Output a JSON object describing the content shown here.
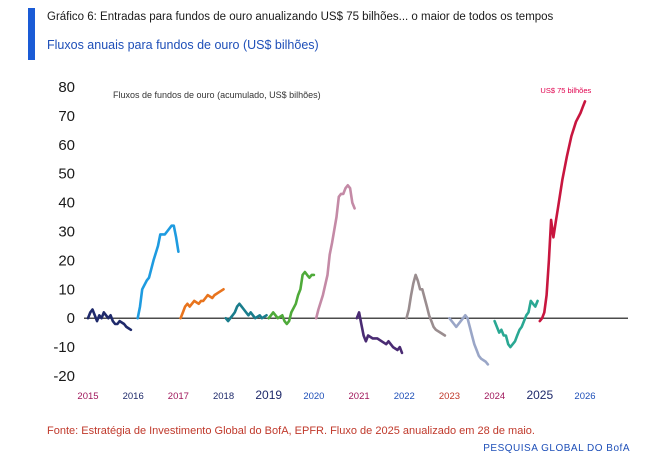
{
  "header": {
    "title": "Gráfico 6: Entradas para fundos de ouro anualizando US$ 75 bilhões... o maior de todos os tempos",
    "subtitle": "Fluxos anuais para fundos de ouro (US$ bilhões)"
  },
  "footer": {
    "source": "Fonte: Estratégia de Investimento Global do BofA, EPFR. Fluxo de 2025 anualizado em 28 de maio.",
    "brand": "PESQUISA GLOBAL DO BofA"
  },
  "colors": {
    "accent": "#1a5bd6",
    "subtitle": "#1e4fb8",
    "source": "#c0392b"
  },
  "chart_data": {
    "type": "line",
    "title": "",
    "xlabel": "",
    "ylabel": "",
    "ylim": [
      -20,
      80
    ],
    "yticks": [
      "80",
      "70",
      "60",
      "50",
      "40",
      "30",
      "20",
      "10",
      "0",
      "-10",
      "-20"
    ],
    "xlim": [
      2015,
      2026
    ],
    "grid": false,
    "zero_line": true,
    "inner_label": "Fluxos de fundos de ouro (acumulado, US$ bilhões)",
    "annotation": {
      "text": "US$ 75 bilhões",
      "x": 2025.5,
      "y": 75,
      "color": "#e0004d"
    },
    "year_labels": [
      {
        "label": "2015",
        "color": "#a0185c"
      },
      {
        "label": "2016",
        "color": "#1f2a6b"
      },
      {
        "label": "2017",
        "color": "#a0185c"
      },
      {
        "label": "2018",
        "color": "#1f2a6b"
      },
      {
        "label": "2019",
        "color": "#1f2a6b"
      },
      {
        "label": "2020",
        "color": "#1e4fb8"
      },
      {
        "label": "2021",
        "color": "#a0185c"
      },
      {
        "label": "2022",
        "color": "#1e4fb8"
      },
      {
        "label": "2023",
        "color": "#c0392b"
      },
      {
        "label": "2024",
        "color": "#a0185c"
      },
      {
        "label": "2025",
        "color": "#1f2a6b"
      },
      {
        "label": "2026",
        "color": "#1e4fb8"
      }
    ],
    "series": [
      {
        "color": "#1f2a6b",
        "points": [
          [
            2015.0,
            0
          ],
          [
            2015.05,
            2
          ],
          [
            2015.1,
            3
          ],
          [
            2015.15,
            1
          ],
          [
            2015.2,
            -1
          ],
          [
            2015.25,
            1
          ],
          [
            2015.3,
            0
          ],
          [
            2015.35,
            2
          ],
          [
            2015.45,
            0
          ],
          [
            2015.5,
            1
          ],
          [
            2015.55,
            -1
          ],
          [
            2015.6,
            -2
          ],
          [
            2015.65,
            -2
          ],
          [
            2015.7,
            -1
          ],
          [
            2015.8,
            -2
          ],
          [
            2015.85,
            -3
          ],
          [
            2015.95,
            -4
          ]
        ]
      },
      {
        "color": "#1e9be0",
        "points": [
          [
            2016.1,
            0
          ],
          [
            2016.15,
            4
          ],
          [
            2016.2,
            10
          ],
          [
            2016.3,
            13
          ],
          [
            2016.35,
            14
          ],
          [
            2016.45,
            20
          ],
          [
            2016.55,
            25
          ],
          [
            2016.6,
            29
          ],
          [
            2016.7,
            29
          ],
          [
            2016.75,
            30
          ],
          [
            2016.85,
            32
          ],
          [
            2016.9,
            32
          ],
          [
            2016.95,
            28
          ],
          [
            2017.0,
            23
          ]
        ]
      },
      {
        "color": "#e8741e",
        "points": [
          [
            2017.05,
            0
          ],
          [
            2017.1,
            2
          ],
          [
            2017.15,
            4
          ],
          [
            2017.2,
            5
          ],
          [
            2017.25,
            4
          ],
          [
            2017.3,
            5
          ],
          [
            2017.35,
            6
          ],
          [
            2017.45,
            5
          ],
          [
            2017.5,
            6
          ],
          [
            2017.55,
            6
          ],
          [
            2017.6,
            7
          ],
          [
            2017.65,
            8
          ],
          [
            2017.75,
            7
          ],
          [
            2017.8,
            8
          ],
          [
            2017.9,
            9
          ],
          [
            2018.0,
            10
          ]
        ]
      },
      {
        "color": "#1a7d8c",
        "points": [
          [
            2018.05,
            0
          ],
          [
            2018.1,
            -1
          ],
          [
            2018.15,
            0
          ],
          [
            2018.2,
            1
          ],
          [
            2018.25,
            2
          ],
          [
            2018.3,
            4
          ],
          [
            2018.35,
            5
          ],
          [
            2018.4,
            4
          ],
          [
            2018.45,
            3
          ],
          [
            2018.5,
            2
          ],
          [
            2018.55,
            1
          ],
          [
            2018.6,
            2
          ],
          [
            2018.65,
            1
          ],
          [
            2018.7,
            0
          ],
          [
            2018.8,
            1
          ],
          [
            2018.85,
            0
          ],
          [
            2018.95,
            1
          ]
        ]
      },
      {
        "color": "#4faa3a",
        "points": [
          [
            2019.0,
            0
          ],
          [
            2019.05,
            1
          ],
          [
            2019.1,
            2
          ],
          [
            2019.15,
            1
          ],
          [
            2019.2,
            0
          ],
          [
            2019.3,
            1
          ],
          [
            2019.35,
            -1
          ],
          [
            2019.4,
            -2
          ],
          [
            2019.45,
            -1
          ],
          [
            2019.5,
            2
          ],
          [
            2019.6,
            5
          ],
          [
            2019.65,
            8
          ],
          [
            2019.7,
            10
          ],
          [
            2019.75,
            15
          ],
          [
            2019.8,
            16
          ],
          [
            2019.85,
            15
          ],
          [
            2019.9,
            14
          ],
          [
            2019.95,
            15
          ],
          [
            2020.0,
            15
          ]
        ]
      },
      {
        "color": "#c48aa6",
        "points": [
          [
            2020.05,
            0
          ],
          [
            2020.1,
            3
          ],
          [
            2020.2,
            8
          ],
          [
            2020.3,
            15
          ],
          [
            2020.35,
            22
          ],
          [
            2020.4,
            26
          ],
          [
            2020.5,
            35
          ],
          [
            2020.55,
            42
          ],
          [
            2020.6,
            43
          ],
          [
            2020.65,
            43
          ],
          [
            2020.7,
            45
          ],
          [
            2020.75,
            46
          ],
          [
            2020.8,
            45
          ],
          [
            2020.85,
            40
          ],
          [
            2020.9,
            38
          ]
        ]
      },
      {
        "color": "#4a2b73",
        "points": [
          [
            2020.95,
            0
          ],
          [
            2021.0,
            2
          ],
          [
            2021.05,
            -2
          ],
          [
            2021.1,
            -6
          ],
          [
            2021.15,
            -8
          ],
          [
            2021.2,
            -6
          ],
          [
            2021.3,
            -7
          ],
          [
            2021.4,
            -7
          ],
          [
            2021.5,
            -8
          ],
          [
            2021.6,
            -9
          ],
          [
            2021.65,
            -8
          ],
          [
            2021.75,
            -10
          ],
          [
            2021.85,
            -11
          ],
          [
            2021.9,
            -10
          ],
          [
            2021.95,
            -12
          ]
        ]
      },
      {
        "color": "#9a8d8f",
        "points": [
          [
            2022.05,
            0
          ],
          [
            2022.1,
            3
          ],
          [
            2022.15,
            8
          ],
          [
            2022.2,
            12
          ],
          [
            2022.25,
            15
          ],
          [
            2022.3,
            13
          ],
          [
            2022.35,
            10
          ],
          [
            2022.4,
            10
          ],
          [
            2022.45,
            7
          ],
          [
            2022.5,
            4
          ],
          [
            2022.55,
            1
          ],
          [
            2022.6,
            -1
          ],
          [
            2022.65,
            -3
          ],
          [
            2022.7,
            -4
          ],
          [
            2022.8,
            -5
          ],
          [
            2022.9,
            -6
          ]
        ]
      },
      {
        "color": "#9aa6c7",
        "points": [
          [
            2023.0,
            0
          ],
          [
            2023.05,
            -1
          ],
          [
            2023.1,
            -2
          ],
          [
            2023.15,
            -3
          ],
          [
            2023.2,
            -2
          ],
          [
            2023.25,
            -1
          ],
          [
            2023.3,
            0
          ],
          [
            2023.35,
            1
          ],
          [
            2023.4,
            0
          ],
          [
            2023.45,
            -3
          ],
          [
            2023.5,
            -6
          ],
          [
            2023.55,
            -9
          ],
          [
            2023.6,
            -11
          ],
          [
            2023.65,
            -13
          ],
          [
            2023.7,
            -14
          ],
          [
            2023.8,
            -15
          ],
          [
            2023.85,
            -16
          ]
        ]
      },
      {
        "color": "#2aa893",
        "points": [
          [
            2024.0,
            -1
          ],
          [
            2024.05,
            -3
          ],
          [
            2024.1,
            -5
          ],
          [
            2024.15,
            -4
          ],
          [
            2024.2,
            -6
          ],
          [
            2024.25,
            -6
          ],
          [
            2024.3,
            -9
          ],
          [
            2024.35,
            -10
          ],
          [
            2024.4,
            -9
          ],
          [
            2024.45,
            -8
          ],
          [
            2024.5,
            -6
          ],
          [
            2024.55,
            -4
          ],
          [
            2024.6,
            -3
          ],
          [
            2024.65,
            -1
          ],
          [
            2024.7,
            1
          ],
          [
            2024.75,
            2
          ],
          [
            2024.8,
            6
          ],
          [
            2024.85,
            5
          ],
          [
            2024.9,
            4
          ],
          [
            2024.95,
            6
          ]
        ]
      },
      {
        "color": "#c8163f",
        "points": [
          [
            2025.0,
            -1
          ],
          [
            2025.05,
            0
          ],
          [
            2025.1,
            2
          ],
          [
            2025.15,
            8
          ],
          [
            2025.2,
            20
          ],
          [
            2025.25,
            34
          ],
          [
            2025.3,
            28
          ],
          [
            2025.35,
            33
          ],
          [
            2025.4,
            38
          ],
          [
            2025.5,
            48
          ],
          [
            2025.6,
            56
          ],
          [
            2025.7,
            63
          ],
          [
            2025.8,
            68
          ],
          [
            2025.9,
            71
          ],
          [
            2025.95,
            73
          ],
          [
            2026.0,
            75
          ]
        ]
      }
    ]
  }
}
